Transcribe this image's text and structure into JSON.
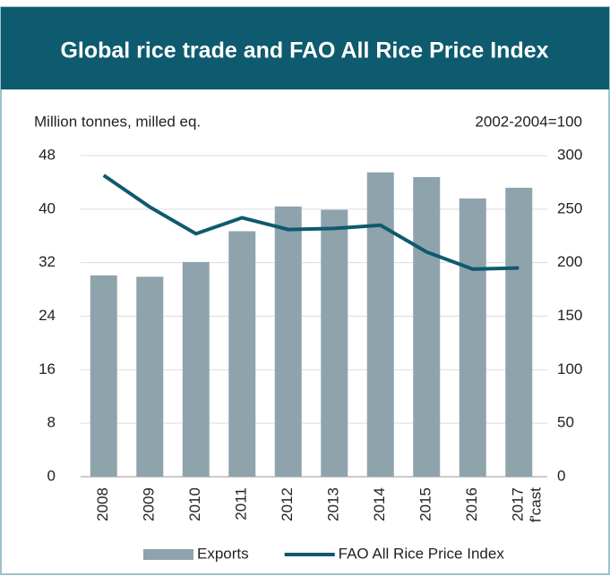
{
  "chart_data": {
    "type": "bar-line",
    "title": "Global rice trade and FAO All Rice Price Index",
    "y_label": "Million tonnes, milled eq.",
    "y2_label": "2002-2004=100",
    "categories": [
      "2008",
      "2009",
      "2010",
      "2011",
      "2012",
      "2013",
      "2014",
      "2015",
      "2016",
      "2017"
    ],
    "annotation": "f'cast",
    "series": [
      {
        "name": "Exports",
        "type": "bar",
        "color": "#8fa3ad",
        "values": [
          30.1,
          29.9,
          32.1,
          36.7,
          40.4,
          39.9,
          45.5,
          44.8,
          41.6,
          43.2
        ]
      },
      {
        "name": "FAO All Rice Price Index",
        "type": "line",
        "axis": "y2",
        "color": "#0e5a6e",
        "values": [
          281.6,
          252,
          227,
          242,
          231,
          232,
          235,
          210,
          194,
          195
        ]
      }
    ],
    "ylim": [
      0,
      48
    ],
    "yticks": [
      0,
      8,
      16,
      24,
      32,
      40,
      48
    ],
    "y2lim": [
      0,
      300
    ],
    "y2ticks": [
      0,
      50,
      100,
      150,
      200,
      250,
      300
    ],
    "grid": true,
    "legend": "bottom"
  }
}
